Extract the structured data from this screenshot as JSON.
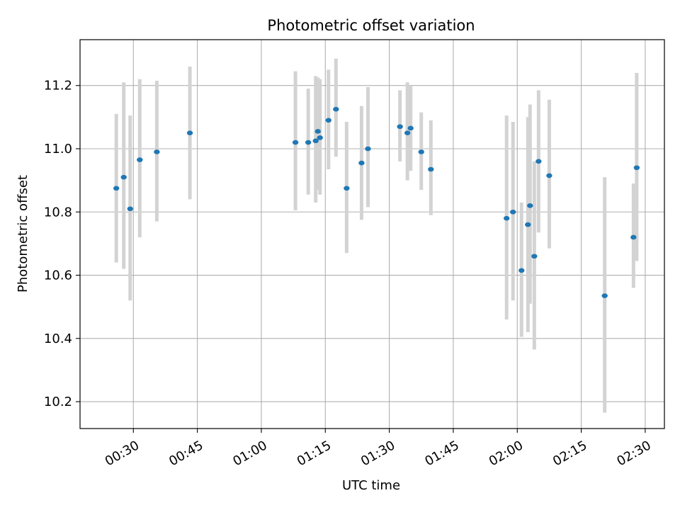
{
  "chart_data": {
    "type": "scatter",
    "title": "Photometric offset variation",
    "xlabel": "UTC time",
    "ylabel": "Photometric offset",
    "x_ticks": [
      "00:30",
      "00:45",
      "01:00",
      "01:15",
      "01:30",
      "01:45",
      "02:00",
      "02:15",
      "02:30"
    ],
    "y_ticks": [
      "10.2",
      "10.4",
      "10.6",
      "10.8",
      "11.0",
      "11.2"
    ],
    "xlim": [
      "00:17:30",
      "02:34:30"
    ],
    "ylim": [
      10.115,
      11.345
    ],
    "grid": true,
    "colors": {
      "points": "#1f77b4",
      "error_bars": "#d3d3d3",
      "grid": "#b0b0b0"
    },
    "points": [
      {
        "x": "00:26:00",
        "y": 10.875,
        "err_low": 10.64,
        "err_high": 11.11
      },
      {
        "x": "00:27:45",
        "y": 10.91,
        "err_low": 10.62,
        "err_high": 11.21
      },
      {
        "x": "00:29:15",
        "y": 10.81,
        "err_low": 10.52,
        "err_high": 11.105
      },
      {
        "x": "00:31:30",
        "y": 10.965,
        "err_low": 10.72,
        "err_high": 11.22
      },
      {
        "x": "00:35:30",
        "y": 10.99,
        "err_low": 10.77,
        "err_high": 11.215
      },
      {
        "x": "00:43:15",
        "y": 11.05,
        "err_low": 10.84,
        "err_high": 11.26
      },
      {
        "x": "01:08:00",
        "y": 11.02,
        "err_low": 10.805,
        "err_high": 11.245
      },
      {
        "x": "01:11:00",
        "y": 11.02,
        "err_low": 10.855,
        "err_high": 11.19
      },
      {
        "x": "01:12:45",
        "y": 11.025,
        "err_low": 10.83,
        "err_high": 11.23
      },
      {
        "x": "01:13:15",
        "y": 11.055,
        "err_low": 10.87,
        "err_high": 11.225
      },
      {
        "x": "01:13:45",
        "y": 11.035,
        "err_low": 10.855,
        "err_high": 11.22
      },
      {
        "x": "01:15:45",
        "y": 11.09,
        "err_low": 10.935,
        "err_high": 11.25
      },
      {
        "x": "01:17:30",
        "y": 11.125,
        "err_low": 10.975,
        "err_high": 11.285
      },
      {
        "x": "01:20:00",
        "y": 10.875,
        "err_low": 10.67,
        "err_high": 11.085
      },
      {
        "x": "01:23:30",
        "y": 10.955,
        "err_low": 10.775,
        "err_high": 11.135
      },
      {
        "x": "01:25:00",
        "y": 11.0,
        "err_low": 10.815,
        "err_high": 11.195
      },
      {
        "x": "01:32:30",
        "y": 11.07,
        "err_low": 10.96,
        "err_high": 11.185
      },
      {
        "x": "01:34:15",
        "y": 11.05,
        "err_low": 10.9,
        "err_high": 11.21
      },
      {
        "x": "01:35:00",
        "y": 11.065,
        "err_low": 10.93,
        "err_high": 11.2
      },
      {
        "x": "01:37:30",
        "y": 10.99,
        "err_low": 10.87,
        "err_high": 11.115
      },
      {
        "x": "01:39:45",
        "y": 10.935,
        "err_low": 10.79,
        "err_high": 11.09
      },
      {
        "x": "01:57:30",
        "y": 10.78,
        "err_low": 10.46,
        "err_high": 11.105
      },
      {
        "x": "01:59:00",
        "y": 10.8,
        "err_low": 10.52,
        "err_high": 11.085
      },
      {
        "x": "02:01:00",
        "y": 10.615,
        "err_low": 10.405,
        "err_high": 10.83
      },
      {
        "x": "02:02:30",
        "y": 10.76,
        "err_low": 10.42,
        "err_high": 11.1
      },
      {
        "x": "02:03:00",
        "y": 10.82,
        "err_low": 10.51,
        "err_high": 11.14
      },
      {
        "x": "02:04:00",
        "y": 10.66,
        "err_low": 10.365,
        "err_high": 10.96
      },
      {
        "x": "02:05:00",
        "y": 10.96,
        "err_low": 10.735,
        "err_high": 11.185
      },
      {
        "x": "02:07:30",
        "y": 10.915,
        "err_low": 10.685,
        "err_high": 11.155
      },
      {
        "x": "02:20:30",
        "y": 10.535,
        "err_low": 10.165,
        "err_high": 10.91
      },
      {
        "x": "02:27:15",
        "y": 10.72,
        "err_low": 10.56,
        "err_high": 10.89
      },
      {
        "x": "02:28:00",
        "y": 10.94,
        "err_low": 10.645,
        "err_high": 11.24
      }
    ]
  }
}
